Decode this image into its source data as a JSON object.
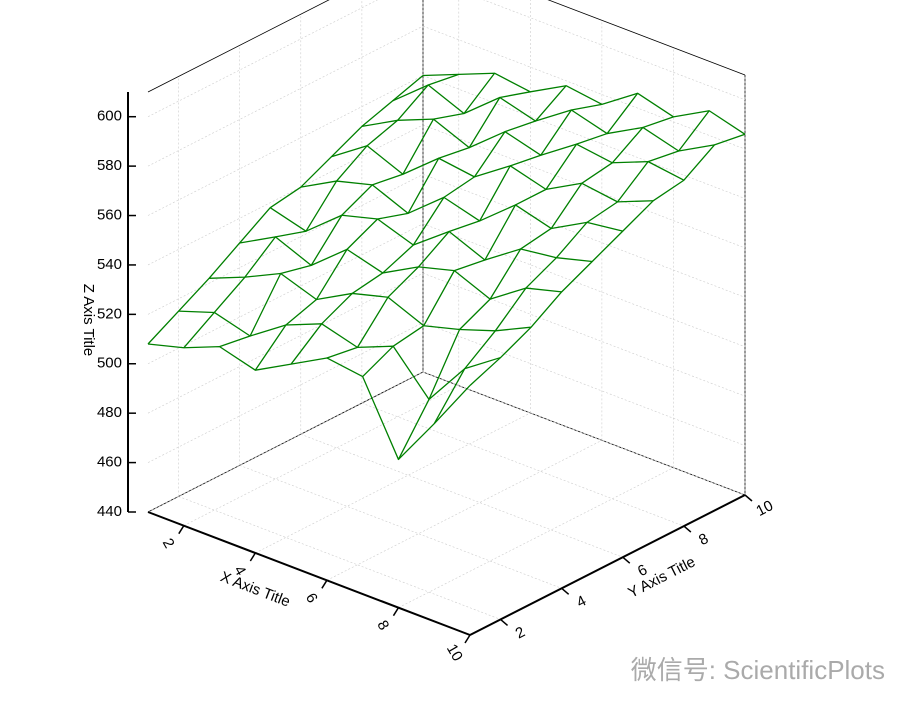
{
  "chart_data": {
    "type": "surface",
    "xlabel": "X Axis Title",
    "ylabel": "Y Axis Title",
    "zlabel": "Z Axis Title",
    "x": [
      1,
      2,
      3,
      4,
      5,
      6,
      7,
      8,
      9,
      10
    ],
    "y": [
      1,
      2,
      3,
      4,
      5,
      6,
      7,
      8,
      9,
      10
    ],
    "z": [
      [
        508,
        512,
        518,
        514,
        522,
        530,
        528,
        500,
        520,
        541
      ],
      [
        515,
        520,
        516,
        526,
        532,
        528,
        534,
        518,
        536,
        546
      ],
      [
        522,
        528,
        535,
        530,
        538,
        542,
        536,
        540,
        545,
        552
      ],
      [
        530,
        538,
        532,
        544,
        540,
        548,
        552,
        546,
        556,
        560
      ],
      [
        538,
        534,
        546,
        550,
        545,
        556,
        550,
        560,
        562,
        566
      ],
      [
        540,
        548,
        552,
        546,
        558,
        554,
        566,
        562,
        570,
        572
      ],
      [
        546,
        556,
        550,
        562,
        560,
        570,
        566,
        574,
        572,
        578
      ],
      [
        552,
        560,
        566,
        560,
        572,
        568,
        578,
        576,
        582,
        580
      ],
      [
        556,
        568,
        562,
        574,
        570,
        580,
        576,
        584,
        580,
        588
      ],
      [
        560,
        566,
        572,
        570,
        578,
        576,
        586,
        582,
        590,
        586
      ]
    ],
    "color": "#008000",
    "xlim": [
      1,
      10
    ],
    "ylim": [
      1,
      10
    ],
    "zlim": [
      440,
      610
    ],
    "xticks": [
      2,
      4,
      6,
      8,
      10
    ],
    "yticks": [
      2,
      4,
      6,
      8,
      10
    ],
    "zticks": [
      440,
      460,
      480,
      500,
      520,
      540,
      560,
      580,
      600
    ],
    "grid": true
  },
  "watermark": "微信号: ScientificPlots"
}
